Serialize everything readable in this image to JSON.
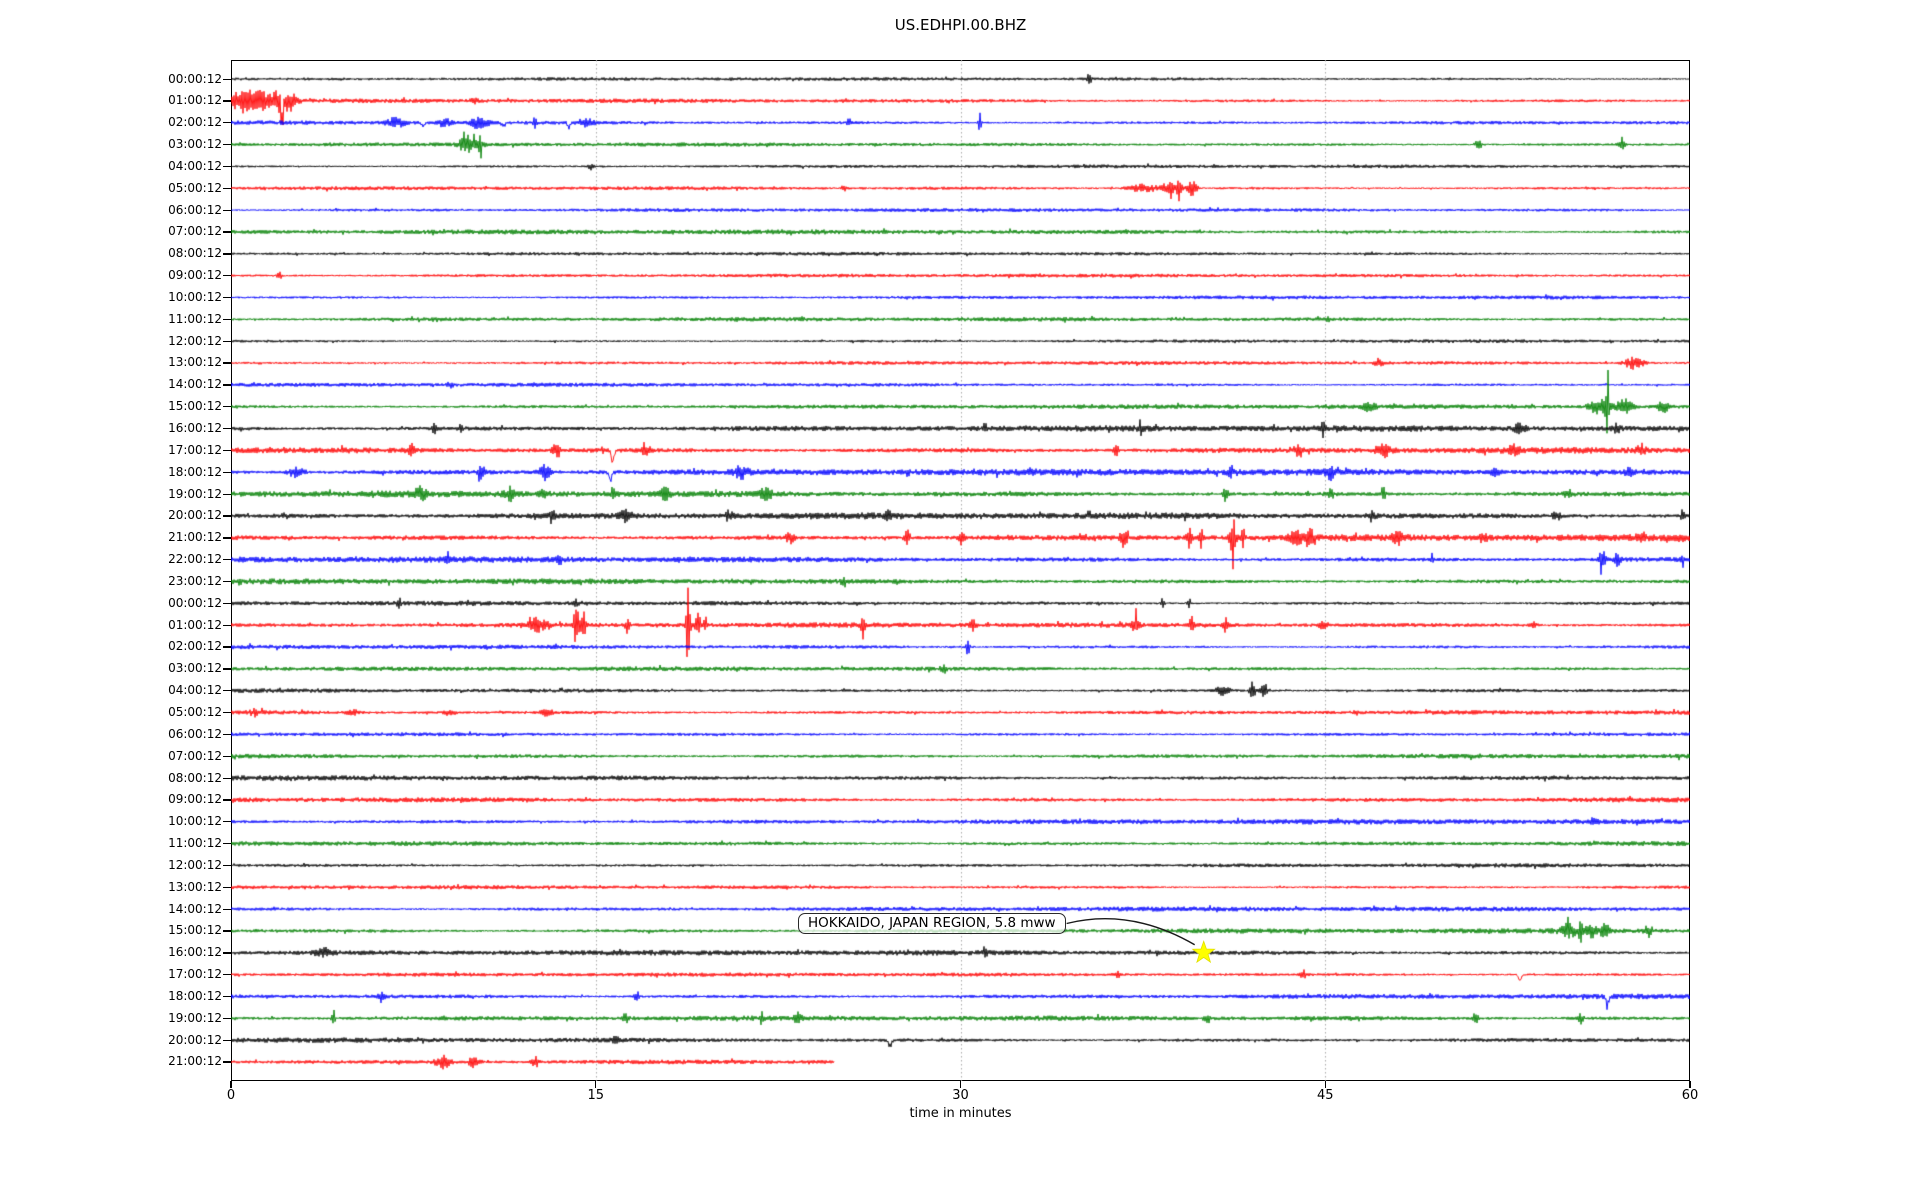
{
  "chart_data": {
    "type": "line",
    "subtype": "seismogram-dayplot-helicorder",
    "title": "US.EDHPI.00.BHZ",
    "xlabel": "time in minutes",
    "x_ticks": [
      0,
      15,
      30,
      45,
      60
    ],
    "x_range": [
      0,
      60
    ],
    "minutes_per_line": 60,
    "grid": {
      "vertical_dotted_at_minutes": [
        15,
        30,
        45
      ],
      "color": "#aaaaaa"
    },
    "colors": {
      "black": "#000000",
      "red": "#ff0000",
      "blue": "#0000ff",
      "green": "#008000",
      "star": "#ffff00",
      "arrow": "#1a1a1a"
    },
    "annotation": {
      "text": "HOKKAIDO, JAPAN REGION, 5.8 mww",
      "star_row_label": "16:00:12",
      "star_row_index": 40,
      "star_minute": 40,
      "star_color": "#ffff00"
    },
    "rows": [
      {
        "label": "00:00:12",
        "color": "#000000",
        "noise": 1.3,
        "events": [
          [
            35.3,
            8,
            0.06
          ]
        ]
      },
      {
        "label": "01:00:12",
        "color": "#ff0000",
        "noise": 1.6,
        "events": [
          [
            0.4,
            9,
            0.5
          ],
          [
            1.2,
            10,
            0.8
          ],
          [
            2.0,
            9,
            0.5
          ],
          [
            2.1,
            -26,
            0.06
          ],
          [
            2.5,
            7,
            0.3
          ],
          [
            10,
            3,
            0.2
          ]
        ]
      },
      {
        "label": "02:00:12",
        "color": "#0000ff",
        "noise": 1.6,
        "events": [
          [
            6.8,
            5,
            0.5
          ],
          [
            7.9,
            -7,
            0.08
          ],
          [
            8.8,
            5,
            0.3
          ],
          [
            10.2,
            6,
            0.4
          ],
          [
            11.2,
            -6,
            0.08
          ],
          [
            12.5,
            5,
            0.1
          ],
          [
            13.9,
            -6,
            0.08
          ],
          [
            14.6,
            4,
            0.4
          ],
          [
            25.4,
            5,
            0.08
          ],
          [
            30.8,
            9,
            0.07
          ]
        ]
      },
      {
        "label": "03:00:12",
        "color": "#008000",
        "noise": 1.5,
        "events": [
          [
            9.7,
            9,
            0.35
          ],
          [
            10.2,
            8,
            0.25
          ],
          [
            51.3,
            4,
            0.2
          ],
          [
            57.2,
            4,
            0.2
          ]
        ]
      },
      {
        "label": "04:00:12",
        "color": "#000000",
        "noise": 1.3,
        "events": [
          [
            14.8,
            3,
            0.15
          ]
        ]
      },
      {
        "label": "05:00:12",
        "color": "#ff0000",
        "noise": 1.4,
        "events": [
          [
            25.2,
            4,
            0.1
          ],
          [
            37.5,
            4,
            0.8
          ],
          [
            38.6,
            6,
            0.4
          ],
          [
            39.0,
            15,
            0.1
          ],
          [
            39.5,
            7,
            0.3
          ]
        ]
      },
      {
        "label": "06:00:12",
        "color": "#0000ff",
        "noise": 1.4,
        "events": []
      },
      {
        "label": "07:00:12",
        "color": "#008000",
        "noise": 1.8,
        "events": []
      },
      {
        "label": "08:00:12",
        "color": "#000000",
        "noise": 1.3,
        "events": []
      },
      {
        "label": "09:00:12",
        "color": "#ff0000",
        "noise": 1.4,
        "events": [
          [
            2,
            3,
            0.15
          ]
        ]
      },
      {
        "label": "10:00:12",
        "color": "#0000ff",
        "noise": 1.4,
        "events": []
      },
      {
        "label": "11:00:12",
        "color": "#008000",
        "noise": 1.6,
        "events": []
      },
      {
        "label": "12:00:12",
        "color": "#000000",
        "noise": 1.3,
        "events": []
      },
      {
        "label": "13:00:12",
        "color": "#ff0000",
        "noise": 1.4,
        "events": [
          [
            47.2,
            4,
            0.2
          ],
          [
            57.7,
            6,
            0.5
          ]
        ]
      },
      {
        "label": "14:00:12",
        "color": "#0000ff",
        "noise": 1.5,
        "events": [
          [
            9,
            3,
            0.15
          ]
        ]
      },
      {
        "label": "15:00:12",
        "color": "#008000",
        "noise": 1.7,
        "events": [
          [
            46.8,
            4,
            0.3
          ],
          [
            56.3,
            8,
            0.5
          ],
          [
            56.6,
            40,
            0.07
          ],
          [
            57.3,
            7,
            0.4
          ],
          [
            58.9,
            6,
            0.3
          ]
        ]
      },
      {
        "label": "16:00:12",
        "color": "#000000",
        "noise": 2.3,
        "events": [
          [
            8.35,
            7,
            0.08
          ],
          [
            9.45,
            7,
            0.08
          ],
          [
            31,
            5,
            0.08
          ],
          [
            37.4,
            7,
            0.07
          ],
          [
            44.9,
            9,
            0.1
          ],
          [
            53,
            4,
            0.3
          ],
          [
            57,
            4,
            0.2
          ]
        ]
      },
      {
        "label": "17:00:12",
        "color": "#ff0000",
        "noise": 2.5,
        "events": [
          [
            7.4,
            6,
            0.2
          ],
          [
            13.4,
            7,
            0.2
          ],
          [
            15.7,
            -17,
            0.07
          ],
          [
            17,
            7,
            0.15
          ],
          [
            36.4,
            7,
            0.1
          ],
          [
            43.9,
            7,
            0.2
          ],
          [
            47.4,
            6,
            0.4
          ],
          [
            52.7,
            5,
            0.3
          ],
          [
            58,
            5,
            0.2
          ]
        ]
      },
      {
        "label": "18:00:12",
        "color": "#0000ff",
        "noise": 2.5,
        "events": [
          [
            2.7,
            6,
            0.4
          ],
          [
            10.3,
            6,
            0.2
          ],
          [
            12.9,
            7,
            0.3
          ],
          [
            15.6,
            -12,
            0.07
          ],
          [
            21,
            6,
            0.3
          ],
          [
            41.1,
            8,
            0.12
          ],
          [
            45.2,
            6,
            0.2
          ],
          [
            52,
            5,
            0.2
          ],
          [
            57.5,
            5,
            0.2
          ]
        ]
      },
      {
        "label": "19:00:12",
        "color": "#008000",
        "noise": 2.4,
        "events": [
          [
            7.8,
            6,
            0.3
          ],
          [
            11.5,
            6,
            0.3
          ],
          [
            12.9,
            5,
            0.2
          ],
          [
            15.7,
            7,
            0.1
          ],
          [
            17.9,
            6,
            0.3
          ],
          [
            22,
            6,
            0.3
          ],
          [
            40.9,
            11,
            0.1
          ],
          [
            45.2,
            5,
            0.2
          ],
          [
            47.4,
            8,
            0.08
          ],
          [
            55,
            4,
            0.2
          ]
        ]
      },
      {
        "label": "20:00:12",
        "color": "#000000",
        "noise": 2.4,
        "events": [
          [
            13.2,
            7,
            0.12
          ],
          [
            16.2,
            7,
            0.3
          ],
          [
            20.5,
            5,
            0.2
          ],
          [
            27,
            4,
            0.2
          ],
          [
            46.9,
            5,
            0.2
          ],
          [
            54.5,
            5,
            0.2
          ],
          [
            59.7,
            8,
            0.1
          ]
        ]
      },
      {
        "label": "21:00:12",
        "color": "#ff0000",
        "noise": 2.5,
        "events": [
          [
            23,
            6,
            0.2
          ],
          [
            27.8,
            8,
            0.15
          ],
          [
            30,
            5,
            0.2
          ],
          [
            36.7,
            8,
            0.2
          ],
          [
            39.4,
            10,
            0.12
          ],
          [
            39.9,
            9,
            0.1
          ],
          [
            41.2,
            20,
            0.15
          ],
          [
            41.6,
            12,
            0.1
          ],
          [
            43.8,
            8,
            0.3
          ],
          [
            44.4,
            7,
            0.2
          ],
          [
            48,
            5,
            0.3
          ],
          [
            51.5,
            6,
            0.2
          ],
          [
            58,
            5,
            0.2
          ]
        ]
      },
      {
        "label": "22:00:12",
        "color": "#0000ff",
        "noise": 2.3,
        "events": [
          [
            8.9,
            7,
            0.08
          ],
          [
            13.5,
            7,
            0.08
          ],
          [
            49.4,
            5,
            0.12
          ],
          [
            56.4,
            11,
            0.15
          ],
          [
            57,
            6,
            0.2
          ],
          [
            59.7,
            6,
            0.1
          ]
        ]
      },
      {
        "label": "23:00:12",
        "color": "#008000",
        "noise": 2.1,
        "events": [
          [
            25.2,
            5,
            0.12
          ]
        ]
      },
      {
        "label": "00:00:12",
        "color": "#000000",
        "noise": 1.7,
        "events": [
          [
            6.9,
            6,
            0.06
          ],
          [
            14.2,
            4,
            0.1
          ],
          [
            38.3,
            5,
            0.1
          ],
          [
            39.4,
            5,
            0.1
          ]
        ]
      },
      {
        "label": "01:00:12",
        "color": "#ff0000",
        "noise": 1.9,
        "events": [
          [
            12.6,
            6,
            0.6
          ],
          [
            14.2,
            18,
            0.15
          ],
          [
            14.5,
            12,
            0.12
          ],
          [
            16.3,
            8,
            0.1
          ],
          [
            18.8,
            45,
            0.08
          ],
          [
            19.2,
            12,
            0.12
          ],
          [
            19.5,
            9,
            0.1
          ],
          [
            26,
            12,
            0.1
          ],
          [
            30.5,
            5,
            0.15
          ],
          [
            37.2,
            8,
            0.15
          ],
          [
            39.5,
            9,
            0.1
          ],
          [
            40.9,
            8,
            0.15
          ],
          [
            44.9,
            7,
            0.15
          ],
          [
            53.5,
            4,
            0.2
          ]
        ]
      },
      {
        "label": "02:00:12",
        "color": "#0000ff",
        "noise": 1.6,
        "events": [
          [
            30.3,
            8,
            0.07
          ]
        ]
      },
      {
        "label": "03:00:12",
        "color": "#008000",
        "noise": 1.7,
        "events": [
          [
            29.3,
            4,
            0.15
          ]
        ]
      },
      {
        "label": "04:00:12",
        "color": "#000000",
        "noise": 1.6,
        "events": [
          [
            40.8,
            4,
            0.4
          ],
          [
            42,
            13,
            0.15
          ],
          [
            42.5,
            7,
            0.2
          ]
        ]
      },
      {
        "label": "05:00:12",
        "color": "#ff0000",
        "noise": 1.7,
        "events": [
          [
            1,
            3,
            0.3
          ],
          [
            5,
            3,
            0.3
          ],
          [
            9,
            3,
            0.3
          ],
          [
            13,
            3,
            0.3
          ]
        ]
      },
      {
        "label": "06:00:12",
        "color": "#0000ff",
        "noise": 1.5,
        "events": []
      },
      {
        "label": "07:00:12",
        "color": "#008000",
        "noise": 1.8,
        "events": []
      },
      {
        "label": "08:00:12",
        "color": "#000000",
        "noise": 2.0,
        "events": []
      },
      {
        "label": "09:00:12",
        "color": "#ff0000",
        "noise": 2.0,
        "events": []
      },
      {
        "label": "10:00:12",
        "color": "#0000ff",
        "noise": 2.0,
        "events": [
          [
            56,
            3,
            0.2
          ]
        ]
      },
      {
        "label": "11:00:12",
        "color": "#008000",
        "noise": 1.9,
        "events": []
      },
      {
        "label": "12:00:12",
        "color": "#000000",
        "noise": 1.5,
        "events": []
      },
      {
        "label": "13:00:12",
        "color": "#ff0000",
        "noise": 1.5,
        "events": []
      },
      {
        "label": "14:00:12",
        "color": "#0000ff",
        "noise": 1.8,
        "events": []
      },
      {
        "label": "15:00:12",
        "color": "#008000",
        "noise": 1.9,
        "events": [
          [
            55.0,
            6,
            0.4
          ],
          [
            55.5,
            14,
            0.08
          ],
          [
            55.9,
            7,
            0.3
          ],
          [
            56.5,
            6,
            0.3
          ],
          [
            58.3,
            5,
            0.2
          ]
        ]
      },
      {
        "label": "16:00:12",
        "color": "#000000",
        "noise": 2.0,
        "events": [
          [
            3.8,
            4,
            0.4
          ],
          [
            31,
            3,
            0.15
          ]
        ]
      },
      {
        "label": "17:00:12",
        "color": "#ff0000",
        "noise": 1.5,
        "events": [
          [
            36.5,
            4,
            0.1
          ],
          [
            44.1,
            4,
            0.15
          ],
          [
            53,
            -10,
            0.07
          ]
        ]
      },
      {
        "label": "18:00:12",
        "color": "#0000ff",
        "noise": 1.9,
        "events": [
          [
            6.2,
            5,
            0.15
          ],
          [
            16.7,
            5,
            0.15
          ],
          [
            56.6,
            -12,
            0.07
          ]
        ]
      },
      {
        "label": "19:00:12",
        "color": "#008000",
        "noise": 1.9,
        "events": [
          [
            4.2,
            6,
            0.1
          ],
          [
            16.2,
            5,
            0.15
          ],
          [
            21.8,
            6,
            0.1
          ],
          [
            23.3,
            5,
            0.15
          ],
          [
            40.1,
            4,
            0.15
          ],
          [
            51.2,
            4,
            0.15
          ],
          [
            55.5,
            5,
            0.15
          ]
        ]
      },
      {
        "label": "20:00:12",
        "color": "#000000",
        "noise": 1.9,
        "events": [
          [
            15.8,
            4,
            0.15
          ],
          [
            27.1,
            -9,
            0.08
          ]
        ]
      },
      {
        "label": "21:00:12",
        "color": "#ff0000",
        "noise": 2.3,
        "end_minute": 24.8,
        "events": [
          [
            8.7,
            6,
            0.4
          ],
          [
            10,
            5,
            0.3
          ],
          [
            12.5,
            6,
            0.2
          ]
        ]
      }
    ]
  }
}
